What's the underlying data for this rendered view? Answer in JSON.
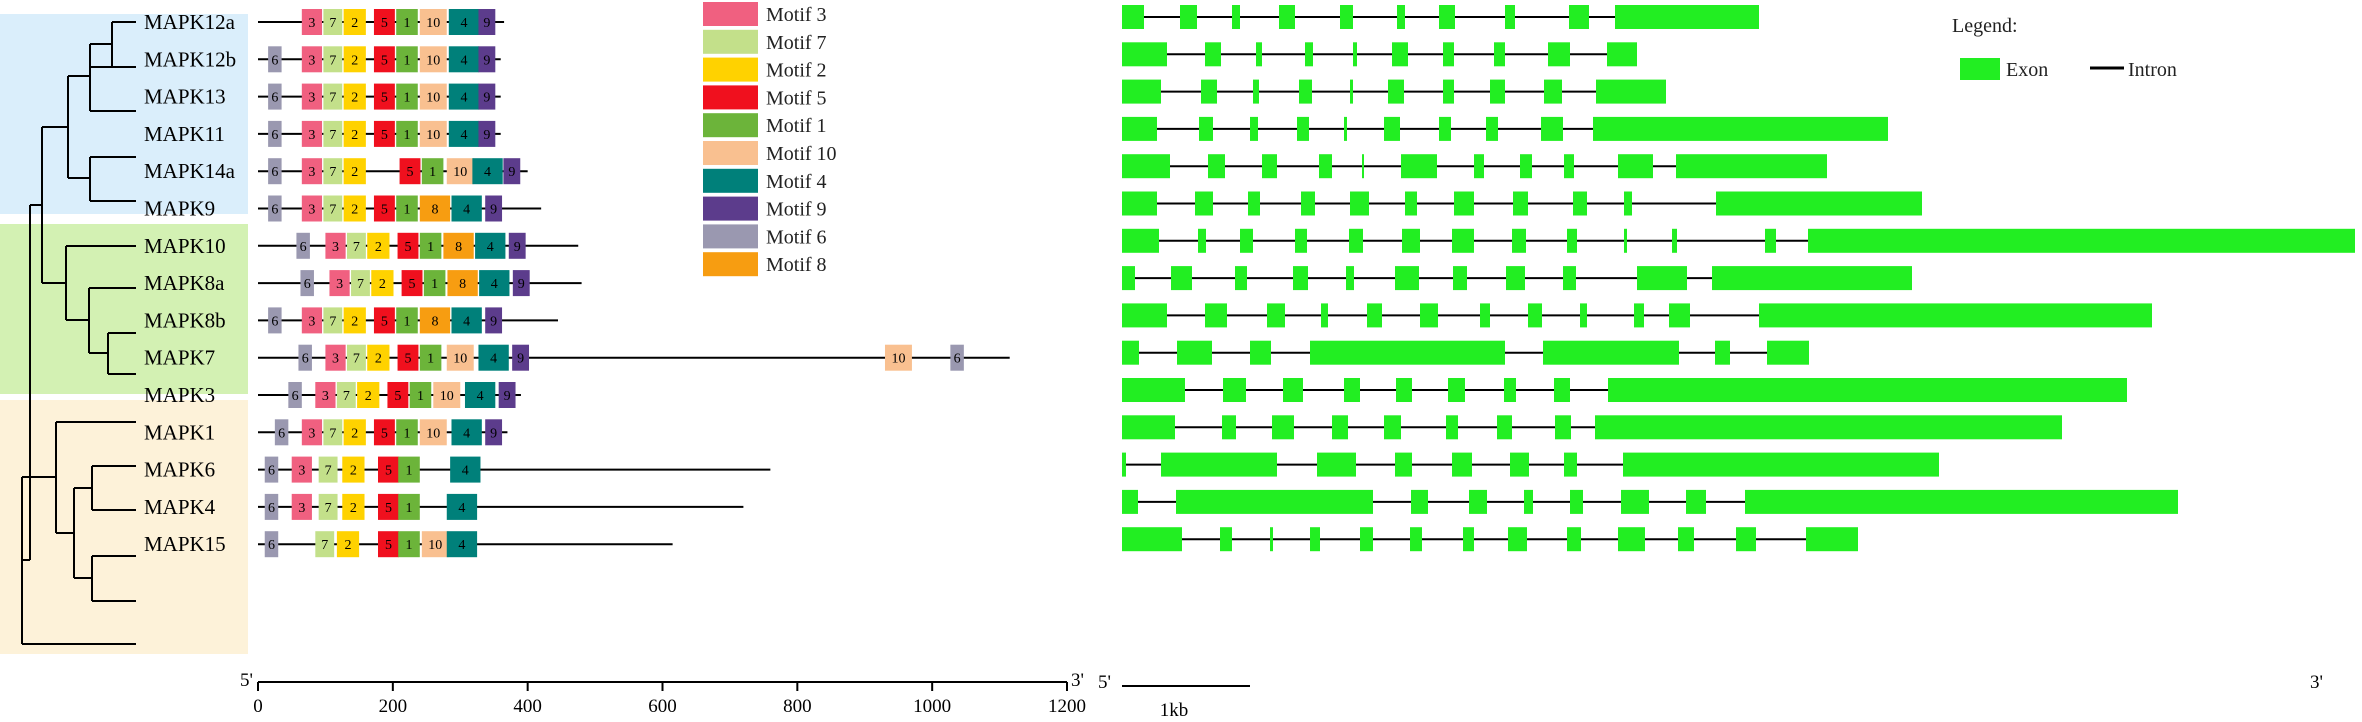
{
  "title": "",
  "clade_colors": [
    "#daeefb",
    "#d3f1b3",
    "#fdf2d9"
  ],
  "genes": [
    {
      "name": "MAPK12a",
      "len": 365,
      "motifs": [
        [
          "3",
          65
        ],
        [
          "7",
          97
        ],
        [
          "2",
          127
        ],
        [
          "5",
          172
        ],
        [
          "1",
          205
        ],
        [
          "10",
          240
        ],
        [
          "4",
          283
        ],
        [
          "9",
          327
        ]
      ]
    },
    {
      "name": "MAPK12b",
      "len": 360,
      "motifs": [
        [
          "6",
          15
        ],
        [
          "3",
          65
        ],
        [
          "7",
          97
        ],
        [
          "2",
          127
        ],
        [
          "5",
          172
        ],
        [
          "1",
          205
        ],
        [
          "10",
          240
        ],
        [
          "4",
          283
        ],
        [
          "9",
          327
        ]
      ]
    },
    {
      "name": "MAPK13",
      "len": 360,
      "motifs": [
        [
          "6",
          15
        ],
        [
          "3",
          65
        ],
        [
          "7",
          97
        ],
        [
          "2",
          127
        ],
        [
          "5",
          172
        ],
        [
          "1",
          205
        ],
        [
          "10",
          240
        ],
        [
          "4",
          283
        ],
        [
          "9",
          327
        ]
      ]
    },
    {
      "name": "MAPK11",
      "len": 360,
      "motifs": [
        [
          "6",
          15
        ],
        [
          "3",
          65
        ],
        [
          "7",
          97
        ],
        [
          "2",
          127
        ],
        [
          "5",
          172
        ],
        [
          "1",
          205
        ],
        [
          "10",
          240
        ],
        [
          "4",
          283
        ],
        [
          "9",
          327
        ]
      ]
    },
    {
      "name": "MAPK14a",
      "len": 400,
      "motifs": [
        [
          "6",
          15
        ],
        [
          "3",
          65
        ],
        [
          "7",
          97
        ],
        [
          "2",
          127
        ],
        [
          "5",
          210
        ],
        [
          "1",
          243
        ],
        [
          "10",
          280
        ],
        [
          "4",
          318
        ],
        [
          "9",
          364
        ]
      ]
    },
    {
      "name": "MAPK9",
      "len": 420,
      "motifs": [
        [
          "6",
          15
        ],
        [
          "3",
          65
        ],
        [
          "7",
          97
        ],
        [
          "2",
          127
        ],
        [
          "5",
          172
        ],
        [
          "1",
          205
        ],
        [
          "8",
          240
        ],
        [
          "4",
          287
        ],
        [
          "9",
          337
        ]
      ]
    },
    {
      "name": "MAPK10",
      "len": 475,
      "motifs": [
        [
          "6",
          57
        ],
        [
          "3",
          100
        ],
        [
          "7",
          132
        ],
        [
          "2",
          162
        ],
        [
          "5",
          207
        ],
        [
          "1",
          240
        ],
        [
          "8",
          275
        ],
        [
          "4",
          322
        ],
        [
          "9",
          372
        ]
      ]
    },
    {
      "name": "MAPK8a",
      "len": 480,
      "motifs": [
        [
          "6",
          63
        ],
        [
          "3",
          106
        ],
        [
          "7",
          138
        ],
        [
          "2",
          168
        ],
        [
          "5",
          213
        ],
        [
          "1",
          246
        ],
        [
          "8",
          281
        ],
        [
          "4",
          328
        ],
        [
          "9",
          378
        ]
      ]
    },
    {
      "name": "MAPK8b",
      "len": 445,
      "motifs": [
        [
          "6",
          15
        ],
        [
          "3",
          65
        ],
        [
          "7",
          97
        ],
        [
          "2",
          127
        ],
        [
          "5",
          172
        ],
        [
          "1",
          205
        ],
        [
          "8",
          240
        ],
        [
          "4",
          287
        ],
        [
          "9",
          337
        ]
      ]
    },
    {
      "name": "MAPK7",
      "len": 1115,
      "motifs": [
        [
          "6",
          60
        ],
        [
          "3",
          100
        ],
        [
          "7",
          132
        ],
        [
          "2",
          162
        ],
        [
          "5",
          207
        ],
        [
          "1",
          240
        ],
        [
          "10",
          280
        ],
        [
          "4",
          327
        ],
        [
          "9",
          377
        ],
        [
          "10",
          930
        ],
        [
          "6",
          1027
        ]
      ]
    },
    {
      "name": "MAPK3",
      "len": 390,
      "motifs": [
        [
          "6",
          45
        ],
        [
          "3",
          85
        ],
        [
          "7",
          117
        ],
        [
          "2",
          147
        ],
        [
          "5",
          192
        ],
        [
          "1",
          225
        ],
        [
          "10",
          260
        ],
        [
          "4",
          307
        ],
        [
          "9",
          357
        ]
      ]
    },
    {
      "name": "MAPK1",
      "len": 370,
      "motifs": [
        [
          "6",
          25
        ],
        [
          "3",
          65
        ],
        [
          "7",
          97
        ],
        [
          "2",
          127
        ],
        [
          "5",
          172
        ],
        [
          "1",
          205
        ],
        [
          "10",
          240
        ],
        [
          "4",
          287
        ],
        [
          "9",
          337
        ]
      ]
    },
    {
      "name": "MAPK6",
      "len": 760,
      "motifs": [
        [
          "6",
          10
        ],
        [
          "3",
          50
        ],
        [
          "7",
          90
        ],
        [
          "2",
          125
        ],
        [
          "5",
          178
        ],
        [
          "1",
          208
        ],
        [
          "4",
          285
        ]
      ]
    },
    {
      "name": "MAPK4",
      "len": 720,
      "motifs": [
        [
          "6",
          10
        ],
        [
          "3",
          50
        ],
        [
          "7",
          90
        ],
        [
          "2",
          125
        ],
        [
          "5",
          178
        ],
        [
          "1",
          208
        ],
        [
          "4",
          280
        ]
      ]
    },
    {
      "name": "MAPK15",
      "len": 615,
      "motifs": [
        [
          "6",
          10
        ],
        [
          "7",
          85
        ],
        [
          "2",
          117
        ],
        [
          "5",
          178
        ],
        [
          "1",
          208
        ],
        [
          "10",
          243
        ],
        [
          "4",
          280
        ]
      ]
    }
  ],
  "motif_legend": [
    {
      "id": "3",
      "label": "Motif 3",
      "color": "#f06080"
    },
    {
      "id": "7",
      "label": "Motif 7",
      "color": "#c3e08a"
    },
    {
      "id": "2",
      "label": "Motif 2",
      "color": "#ffd200"
    },
    {
      "id": "5",
      "label": "Motif 5",
      "color": "#f0101e"
    },
    {
      "id": "1",
      "label": "Motif 1",
      "color": "#6cb43a"
    },
    {
      "id": "10",
      "label": "Motif 10",
      "color": "#f9c090"
    },
    {
      "id": "4",
      "label": "Motif 4",
      "color": "#00807a"
    },
    {
      "id": "9",
      "label": "Motif 9",
      "color": "#5c3c8c"
    },
    {
      "id": "6",
      "label": "Motif 6",
      "color": "#9a98b0"
    },
    {
      "id": "8",
      "label": "Motif 8",
      "color": "#f79d11"
    }
  ],
  "motif_widths": {
    "6": 20,
    "3": 30,
    "7": 28,
    "2": 33,
    "5": 31,
    "1": 32,
    "10": 40,
    "4": 45,
    "9": 25,
    "8": 45
  },
  "motif_axis": {
    "ticks": [
      0,
      200,
      400,
      600,
      800,
      1000,
      1200
    ],
    "max": 1200,
    "left_end": "5'",
    "right_end": "3'"
  },
  "gene_structures": [
    [
      [
        0,
        22
      ],
      [
        58,
        75
      ],
      [
        110,
        118
      ],
      [
        157,
        173
      ],
      [
        218,
        231
      ],
      [
        275,
        283
      ],
      [
        317,
        333
      ],
      [
        383,
        393
      ],
      [
        447,
        467
      ],
      [
        493,
        637
      ]
    ],
    [
      [
        0,
        45
      ],
      [
        83,
        99
      ],
      [
        134,
        140
      ],
      [
        183,
        191
      ],
      [
        231,
        235
      ],
      [
        270,
        286
      ],
      [
        321,
        332
      ],
      [
        372,
        383
      ],
      [
        426,
        448
      ],
      [
        485,
        515
      ]
    ],
    [
      [
        0,
        39
      ],
      [
        79,
        95
      ],
      [
        131,
        137
      ],
      [
        177,
        190
      ],
      [
        228,
        231
      ],
      [
        266,
        282
      ],
      [
        321,
        332
      ],
      [
        368,
        383
      ],
      [
        422,
        440
      ],
      [
        474,
        544
      ]
    ],
    [
      [
        0,
        35
      ],
      [
        77,
        91
      ],
      [
        128,
        136
      ],
      [
        175,
        187
      ],
      [
        222,
        225
      ],
      [
        262,
        278
      ],
      [
        317,
        329
      ],
      [
        364,
        376
      ],
      [
        419,
        441
      ],
      [
        471,
        766
      ]
    ],
    [
      [
        0,
        48
      ],
      [
        86,
        103
      ],
      [
        140,
        155
      ],
      [
        197,
        210
      ],
      [
        240,
        242
      ],
      [
        279,
        315
      ],
      [
        352,
        362
      ],
      [
        398,
        410
      ],
      [
        442,
        452
      ],
      [
        496,
        531
      ],
      [
        554,
        705
      ]
    ],
    [
      [
        0,
        35
      ],
      [
        73,
        91
      ],
      [
        126,
        138
      ],
      [
        179,
        193
      ],
      [
        228,
        247
      ],
      [
        283,
        295
      ],
      [
        332,
        352
      ],
      [
        391,
        406
      ],
      [
        451,
        465
      ],
      [
        502,
        510
      ],
      [
        594,
        800
      ]
    ],
    [
      [
        0,
        37
      ],
      [
        76,
        84
      ],
      [
        118,
        131
      ],
      [
        173,
        185
      ],
      [
        227,
        241
      ],
      [
        280,
        298
      ],
      [
        330,
        352
      ],
      [
        390,
        404
      ],
      [
        445,
        455
      ],
      [
        502,
        505
      ],
      [
        550,
        555
      ],
      [
        643,
        654
      ],
      [
        686,
        1233
      ]
    ],
    [
      [
        0,
        13
      ],
      [
        49,
        70
      ],
      [
        113,
        125
      ],
      [
        171,
        186
      ],
      [
        224,
        232
      ],
      [
        273,
        297
      ],
      [
        331,
        345
      ],
      [
        384,
        403
      ],
      [
        441,
        454
      ],
      [
        515,
        565
      ],
      [
        590,
        790
      ]
    ],
    [
      [
        0,
        45
      ],
      [
        83,
        105
      ],
      [
        145,
        163
      ],
      [
        199,
        206
      ],
      [
        245,
        260
      ],
      [
        298,
        316
      ],
      [
        358,
        368
      ],
      [
        406,
        420
      ],
      [
        458,
        465
      ],
      [
        512,
        522
      ],
      [
        547,
        568
      ],
      [
        637,
        1030
      ]
    ],
    [
      [
        0,
        17
      ],
      [
        55,
        90
      ],
      [
        128,
        149
      ],
      [
        188,
        383
      ],
      [
        421,
        557
      ],
      [
        593,
        608
      ],
      [
        645,
        687
      ]
    ],
    [
      [
        0,
        63
      ],
      [
        101,
        124
      ],
      [
        161,
        181
      ],
      [
        222,
        238
      ],
      [
        274,
        290
      ],
      [
        326,
        343
      ],
      [
        382,
        394
      ],
      [
        432,
        448
      ],
      [
        486,
        1005
      ]
    ],
    [
      [
        0,
        53
      ],
      [
        100,
        114
      ],
      [
        150,
        172
      ],
      [
        210,
        226
      ],
      [
        262,
        279
      ],
      [
        324,
        336
      ],
      [
        375,
        390
      ],
      [
        433,
        449
      ],
      [
        473,
        940
      ]
    ],
    [
      [
        0,
        4
      ],
      [
        39,
        155
      ],
      [
        195,
        234
      ],
      [
        273,
        290
      ],
      [
        330,
        350
      ],
      [
        388,
        407
      ],
      [
        442,
        455
      ],
      [
        501,
        817
      ]
    ],
    [
      [
        0,
        16
      ],
      [
        54,
        251
      ],
      [
        289,
        306
      ],
      [
        347,
        365
      ],
      [
        402,
        411
      ],
      [
        448,
        461
      ],
      [
        499,
        527
      ],
      [
        564,
        584
      ],
      [
        623,
        1056
      ]
    ],
    [
      [
        0,
        60
      ],
      [
        98,
        110
      ],
      [
        148,
        151
      ],
      [
        188,
        198
      ],
      [
        238,
        251
      ],
      [
        288,
        300
      ],
      [
        341,
        352
      ],
      [
        386,
        405
      ],
      [
        445,
        459
      ],
      [
        496,
        523
      ],
      [
        556,
        572
      ],
      [
        614,
        634
      ],
      [
        684,
        736
      ]
    ]
  ],
  "structure_legend": {
    "title": "Legend:",
    "exon": "Exon",
    "intron": "Intron"
  },
  "structure_axis": {
    "left_end": "5'",
    "right_end": "3'",
    "scale_label": "1kb"
  }
}
